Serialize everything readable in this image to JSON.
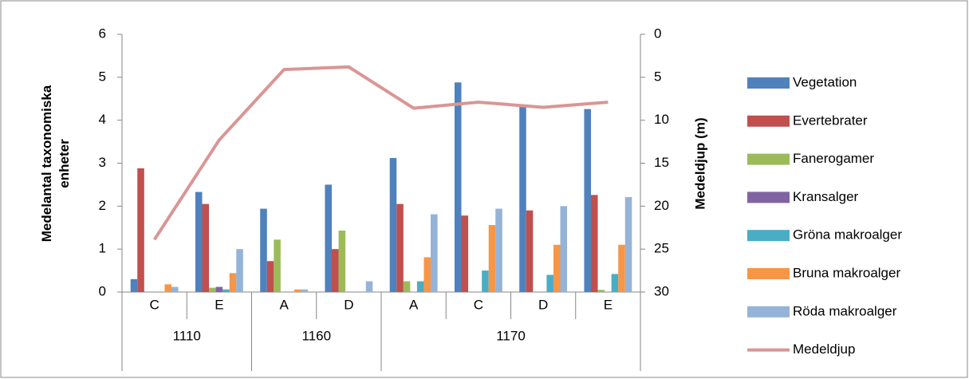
{
  "chart_data": {
    "type": "bar-line",
    "ylabel": [
      "Medelantal taxonomiska",
      "enheter"
    ],
    "y2label": "Medeldjup (m)",
    "category_groups": [
      {
        "label": "1110",
        "categories": [
          "C",
          "E"
        ]
      },
      {
        "label": "1160",
        "categories": [
          "A",
          "D"
        ]
      },
      {
        "label": "1170",
        "categories": [
          "A",
          "C",
          "D",
          "E"
        ]
      }
    ],
    "ylim": [
      0,
      6
    ],
    "yticks": [
      0,
      1,
      2,
      3,
      4,
      5,
      6
    ],
    "y2lim": [
      0,
      30
    ],
    "y2ticks": [
      0,
      5,
      10,
      15,
      20,
      25,
      30
    ],
    "y2_reversed": true,
    "grid": false,
    "legend": "right",
    "series": [
      {
        "name": "Vegetation",
        "type": "bar",
        "color": "#4f81bd",
        "values": [
          0.3,
          2.33,
          1.94,
          2.5,
          3.12,
          4.88,
          4.31,
          4.26
        ]
      },
      {
        "name": "Evertebrater",
        "type": "bar",
        "color": "#c0504d",
        "values": [
          2.88,
          2.05,
          0.72,
          1.0,
          2.05,
          1.78,
          1.9,
          2.26
        ]
      },
      {
        "name": "Fanerogamer",
        "type": "bar",
        "color": "#9bbb59",
        "values": [
          0,
          0.1,
          1.22,
          1.43,
          0.25,
          0,
          0,
          0.05
        ]
      },
      {
        "name": "Kransalger",
        "type": "bar",
        "color": "#8064a2",
        "values": [
          0,
          0.12,
          0,
          0,
          0,
          0,
          0,
          0
        ]
      },
      {
        "name": "Gröna makroalger",
        "type": "bar",
        "color": "#4bacc6",
        "values": [
          0,
          0.06,
          0,
          0,
          0.25,
          0.5,
          0.4,
          0.42
        ]
      },
      {
        "name": "Bruna makroalger",
        "type": "bar",
        "color": "#f79646",
        "values": [
          0.18,
          0.44,
          0.06,
          0,
          0.81,
          1.56,
          1.1,
          1.1
        ]
      },
      {
        "name": "Röda makroalger",
        "type": "bar",
        "color": "#95b3d7",
        "values": [
          0.12,
          1.0,
          0.06,
          0.25,
          1.81,
          1.94,
          2.0,
          2.21
        ]
      },
      {
        "name": "Medeldjup",
        "type": "line",
        "axis": "y2",
        "color": "#d99694",
        "values": [
          23.9,
          12.3,
          4.1,
          3.8,
          8.6,
          7.9,
          8.5,
          7.9
        ]
      }
    ]
  }
}
